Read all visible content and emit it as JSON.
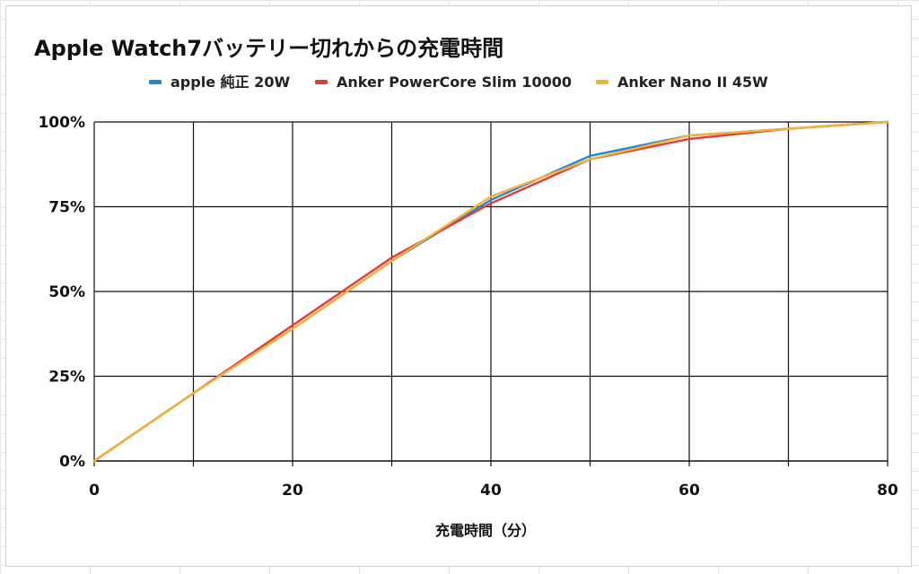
{
  "chart_data": {
    "type": "line",
    "title": "Apple Watch7バッテリー切れからの充電時間",
    "xlabel": "充電時間（分）",
    "ylabel": "",
    "xlim": [
      0,
      80
    ],
    "ylim": [
      0,
      100
    ],
    "x_ticks": [
      0,
      20,
      40,
      60,
      80
    ],
    "x_tick_labels": [
      "0",
      "20",
      "40",
      "60",
      "80"
    ],
    "y_ticks": [
      0,
      25,
      50,
      75,
      100
    ],
    "y_tick_labels": [
      "0%",
      "25%",
      "50%",
      "75%",
      "100%"
    ],
    "grid": true,
    "legend_position": "top",
    "series": [
      {
        "name": "apple 純正 20W",
        "color": "#1f87d6",
        "x": [
          0,
          10,
          20,
          30,
          40,
          50,
          60,
          70,
          80
        ],
        "y": [
          0,
          20,
          39,
          59,
          77,
          90,
          96,
          98,
          100
        ]
      },
      {
        "name": "Anker PowerCore Slim 10000",
        "color": "#e63b35",
        "x": [
          0,
          10,
          20,
          30,
          40,
          50,
          60,
          70,
          80
        ],
        "y": [
          0,
          20,
          40,
          60,
          76,
          89,
          95,
          98,
          100
        ]
      },
      {
        "name": "Anker Nano II 45W",
        "color": "#f2b233",
        "x": [
          0,
          10,
          20,
          30,
          40,
          50,
          60,
          70,
          80
        ],
        "y": [
          0,
          20,
          39,
          59,
          78,
          89,
          96,
          98,
          100
        ]
      }
    ]
  }
}
